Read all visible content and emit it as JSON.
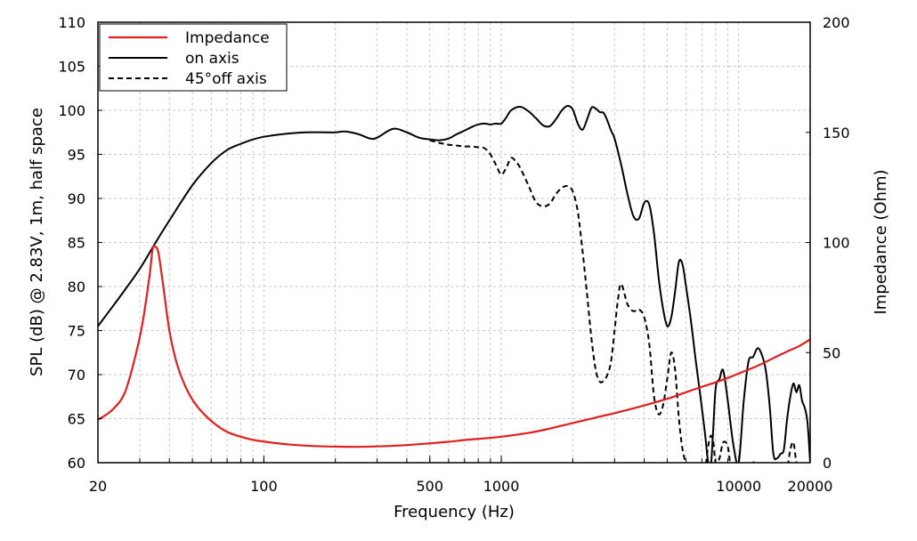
{
  "chart_data": {
    "type": "line",
    "xlabel": "Frequency (Hz)",
    "ylabel": "SPL (dB) @ 2.83V, 1m, half space",
    "y2label": "Impedance (Ohm)",
    "xscale": "log",
    "xlim": [
      20,
      20000
    ],
    "ylim": [
      60,
      110
    ],
    "y2lim": [
      0,
      200
    ],
    "grid": true,
    "legend_position": "top-left",
    "x_ticks": [
      {
        "value": 20,
        "label": "20"
      },
      {
        "value": 100,
        "label": "100"
      },
      {
        "value": 500,
        "label": "500"
      },
      {
        "value": 1000,
        "label": "1000"
      },
      {
        "value": 10000,
        "label": "10000"
      },
      {
        "value": 20000,
        "label": "20000"
      }
    ],
    "y_ticks": [
      "60",
      "65",
      "70",
      "75",
      "80",
      "85",
      "90",
      "95",
      "100",
      "105",
      "110"
    ],
    "y2_ticks": [
      "0",
      "50",
      "100",
      "150",
      "200"
    ],
    "series": [
      {
        "name": "Impedance",
        "color": "#e01f1f",
        "style": "solid",
        "axis": "right",
        "x": [
          20,
          23,
          26,
          29,
          31,
          33,
          34,
          35,
          36,
          37.5,
          40,
          43,
          47,
          52,
          60,
          70,
          85,
          100,
          130,
          160,
          200,
          250,
          320,
          400,
          500,
          600,
          700,
          800,
          1000,
          1300,
          1600,
          2000,
          2500,
          3000,
          4000,
          5000,
          6000,
          7000,
          8000,
          9000,
          10000,
          12000,
          14000,
          16000,
          18000,
          20000
        ],
        "y": [
          19.5,
          24,
          32,
          50,
          65,
          85,
          97,
          98,
          95,
          82,
          60,
          45,
          34,
          26,
          19,
          14,
          11,
          9.6,
          8.2,
          7.6,
          7.3,
          7.2,
          7.5,
          8,
          8.8,
          9.5,
          10.3,
          10.8,
          11.8,
          13.5,
          15.5,
          18,
          20.5,
          22.5,
          26,
          29,
          32,
          34.5,
          36.5,
          38.5,
          40.5,
          44,
          47.5,
          50.5,
          53,
          56
        ]
      },
      {
        "name": "on axis",
        "color": "#000000",
        "style": "solid",
        "axis": "left",
        "x": [
          20,
          25,
          30,
          35,
          40,
          50,
          60,
          70,
          80,
          90,
          100,
          120,
          150,
          180,
          200,
          220,
          250,
          280,
          300,
          350,
          400,
          450,
          500,
          550,
          600,
          650,
          700,
          750,
          800,
          850,
          900,
          950,
          1000,
          1050,
          1100,
          1200,
          1300,
          1400,
          1500,
          1600,
          1700,
          1800,
          1900,
          2000,
          2100,
          2200,
          2300,
          2400,
          2500,
          2600,
          2700,
          2800,
          2900,
          3000,
          3200,
          3400,
          3600,
          3800,
          4000,
          4200,
          4400,
          4600,
          4800,
          5000,
          5200,
          5400,
          5600,
          5800,
          6000,
          6300,
          6600,
          6900,
          7200,
          7400,
          7600,
          7800,
          8000,
          8300,
          8600,
          9000,
          9500,
          10000,
          10500,
          11000,
          11500,
          12000,
          12500,
          13000,
          13500,
          14000,
          14500,
          15000,
          15500,
          16000,
          16500,
          17000,
          17500,
          18000,
          18500,
          19000,
          19500,
          20000
        ],
        "y": [
          75.5,
          79,
          82,
          85,
          87.5,
          91.5,
          94,
          95.5,
          96.2,
          96.7,
          97,
          97.3,
          97.5,
          97.5,
          97.5,
          97.6,
          97.3,
          96.8,
          96.9,
          97.9,
          97.5,
          96.9,
          96.7,
          96.6,
          96.8,
          97.3,
          97.7,
          98.1,
          98.4,
          98.5,
          98.4,
          98.5,
          98.5,
          99.2,
          100,
          100.4,
          99.9,
          99.1,
          98.3,
          98.2,
          99,
          100,
          100.5,
          100.1,
          98.5,
          97.8,
          99,
          100.3,
          100.2,
          99.8,
          99.7,
          98.8,
          97.7,
          96.8,
          93.8,
          90.5,
          88,
          87.7,
          89.5,
          89.3,
          86,
          81,
          77.5,
          75.5,
          76.5,
          79.5,
          82.8,
          82.5,
          80,
          76,
          71.5,
          67.5,
          63.5,
          60.5,
          59,
          63.5,
          68.5,
          69.5,
          70.5,
          67,
          62,
          60,
          67,
          71.5,
          72,
          73,
          72.3,
          70.5,
          66.5,
          61,
          60.5,
          61,
          61.5,
          65,
          67.5,
          69,
          68,
          68.8,
          67,
          66.2,
          64.5,
          60
        ]
      },
      {
        "name": "45°off axis",
        "color": "#000000",
        "style": "dashed",
        "axis": "left",
        "x": [
          500,
          550,
          600,
          650,
          700,
          750,
          800,
          850,
          900,
          950,
          1000,
          1050,
          1100,
          1150,
          1200,
          1300,
          1400,
          1500,
          1600,
          1700,
          1800,
          1900,
          2000,
          2100,
          2200,
          2300,
          2400,
          2500,
          2600,
          2700,
          2800,
          2900,
          3000,
          3100,
          3200,
          3400,
          3600,
          3800,
          4000,
          4200,
          4400,
          4600,
          4800,
          5000,
          5200,
          5400,
          5600,
          5800,
          6000,
          6300,
          6600,
          6900,
          7200,
          7400,
          7600,
          7800,
          8000,
          8300,
          8600,
          9000,
          9300,
          9600,
          10000,
          10500,
          11000,
          11500,
          12000,
          12500,
          13000,
          14000,
          15000,
          16000,
          16500,
          17000,
          17500,
          18000,
          18500,
          19000
        ],
        "y": [
          96.6,
          96.3,
          96.1,
          96,
          95.9,
          95.9,
          95.8,
          95.7,
          95,
          93.8,
          92.7,
          93.5,
          94.6,
          94.2,
          93.5,
          91.5,
          89.6,
          89.1,
          89.4,
          90.5,
          91.2,
          91.4,
          90.8,
          88.5,
          84,
          79,
          74,
          70.5,
          69.2,
          69.3,
          70,
          71.5,
          75,
          78.5,
          80.3,
          78,
          77.2,
          77.4,
          76.5,
          73.5,
          67.5,
          65.5,
          66.5,
          69.5,
          72.5,
          70.5,
          65,
          61.5,
          60,
          59,
          59,
          58.5,
          59,
          61.5,
          63,
          62.5,
          60,
          60.5,
          62.3,
          61.8,
          58.8,
          58,
          59,
          59.3,
          59,
          60,
          59.8,
          59,
          58.5,
          58,
          58.5,
          59.5,
          61.5,
          62.3,
          60,
          59,
          58.5,
          58
        ]
      }
    ]
  }
}
